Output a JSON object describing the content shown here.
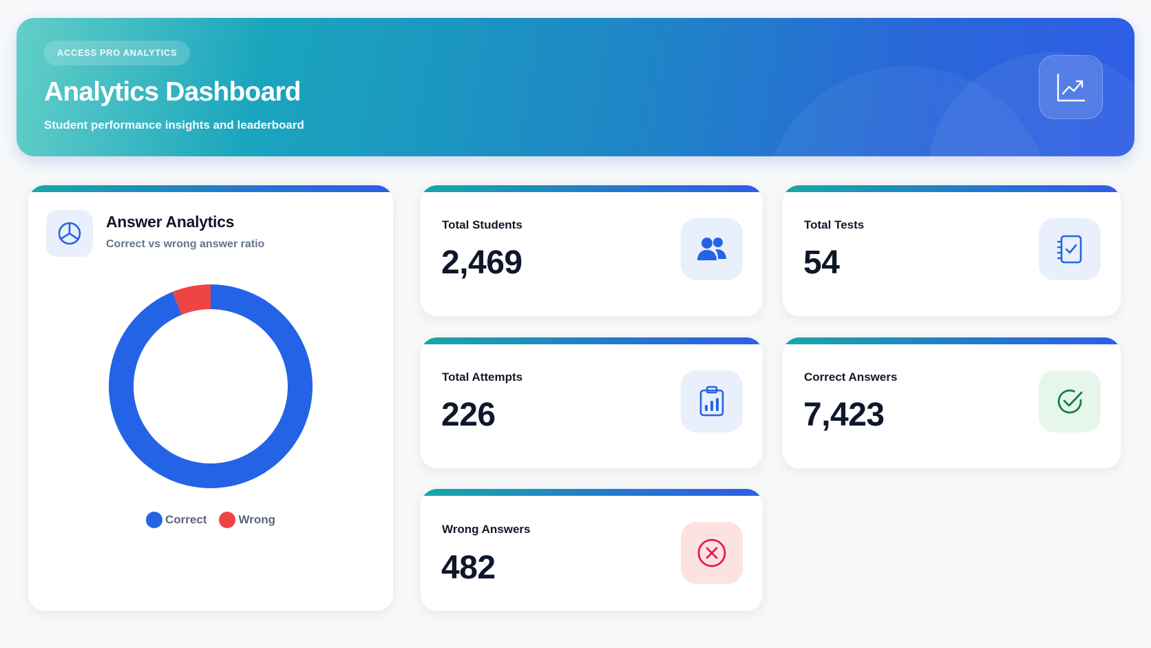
{
  "header": {
    "badge": "ACCESS PRO ANALYTICS",
    "title": "Analytics Dashboard",
    "subtitle": "Student performance insights and leaderboard",
    "icon": "line-chart-icon"
  },
  "answer_analytics": {
    "title": "Answer Analytics",
    "subtitle": "Correct vs wrong answer ratio",
    "icon": "pie-chart-icon",
    "legend": [
      {
        "label": "Correct",
        "color": "#2563e6"
      },
      {
        "label": "Wrong",
        "color": "#ef4444"
      }
    ]
  },
  "chart_data": {
    "type": "pie",
    "categories": [
      "Correct",
      "Wrong"
    ],
    "values": [
      7423,
      482
    ],
    "colors": [
      "#2563e6",
      "#ef4444"
    ],
    "style": "donut",
    "legend_position": "bottom"
  },
  "stats": {
    "total_students": {
      "label": "Total Students",
      "value": "2,469",
      "icon": "users-icon",
      "icon_bg": "#e9f0fb",
      "icon_color": "#2563e6"
    },
    "total_tests": {
      "label": "Total Tests",
      "value": "54",
      "icon": "checklist-icon",
      "icon_bg": "#e9f0fb",
      "icon_color": "#2563e6"
    },
    "total_attempts": {
      "label": "Total Attempts",
      "value": "226",
      "icon": "clipboard-chart-icon",
      "icon_bg": "#e9f0fb",
      "icon_color": "#2563e6"
    },
    "correct_answers": {
      "label": "Correct Answers",
      "value": "7,423",
      "icon": "check-circle-icon",
      "icon_bg": "#e6f6ec",
      "icon_color": "#15803d"
    },
    "wrong_answers": {
      "label": "Wrong Answers",
      "value": "482",
      "icon": "x-circle-icon",
      "icon_bg": "#fde2e4",
      "icon_color": "#e11d48"
    }
  }
}
